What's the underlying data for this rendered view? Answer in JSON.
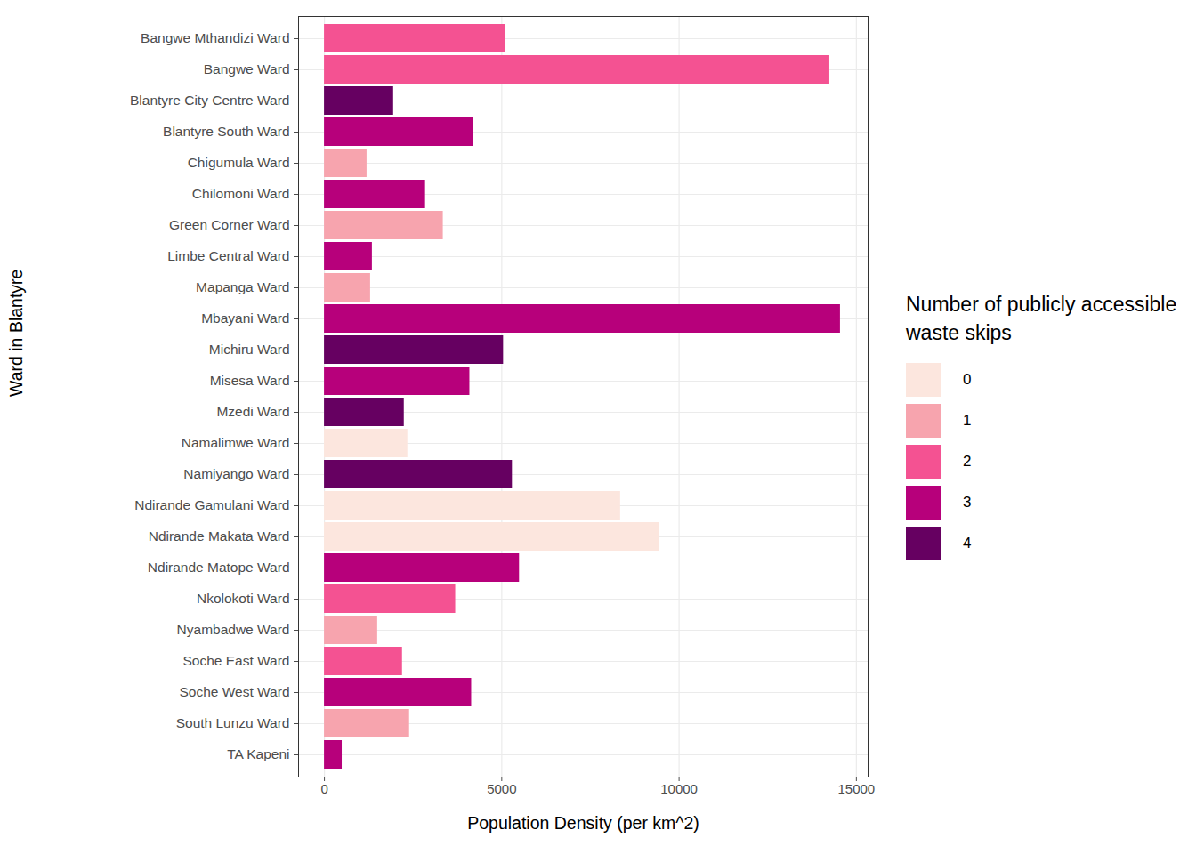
{
  "chart_data": {
    "type": "bar",
    "orientation": "horizontal",
    "x_label": "Population Density (per km^2)",
    "y_label": "Ward in Blantyre",
    "categories": [
      "Bangwe Mthandizi Ward",
      "Bangwe Ward",
      "Blantyre City Centre Ward",
      "Blantyre South Ward",
      "Chigumula Ward",
      "Chilomoni Ward",
      "Green Corner Ward",
      "Limbe Central Ward",
      "Mapanga Ward",
      "Mbayani Ward",
      "Michiru Ward",
      "Misesa Ward",
      "Mzedi Ward",
      "Namalimwe Ward",
      "Namiyango Ward",
      "Ndirande Gamulani Ward",
      "Ndirande Makata Ward",
      "Ndirande Matope Ward",
      "Nkolokoti Ward",
      "Nyambadwe Ward",
      "Soche East Ward",
      "Soche West Ward",
      "South Lunzu Ward",
      "TA Kapeni"
    ],
    "values": [
      5100,
      14250,
      1950,
      4200,
      1200,
      2850,
      3350,
      1350,
      1300,
      14550,
      5050,
      4100,
      2250,
      2350,
      5300,
      8350,
      9450,
      5500,
      3700,
      1500,
      2200,
      4150,
      2400,
      500
    ],
    "skips": [
      2,
      2,
      4,
      3,
      1,
      3,
      1,
      3,
      1,
      3,
      4,
      3,
      4,
      0,
      4,
      0,
      0,
      3,
      2,
      1,
      2,
      3,
      1,
      3
    ],
    "color_scale": {
      "title": "Number of publicly accessible waste skips",
      "categories": [
        0,
        1,
        2,
        3,
        4
      ],
      "colors": [
        "#fce6de",
        "#f7a4ae",
        "#f45292",
        "#b7007b",
        "#660061"
      ]
    },
    "legend": "right",
    "xlim": [
      -730,
      15330
    ],
    "xticks": [
      0,
      5000,
      10000,
      15000
    ],
    "grid": true
  }
}
